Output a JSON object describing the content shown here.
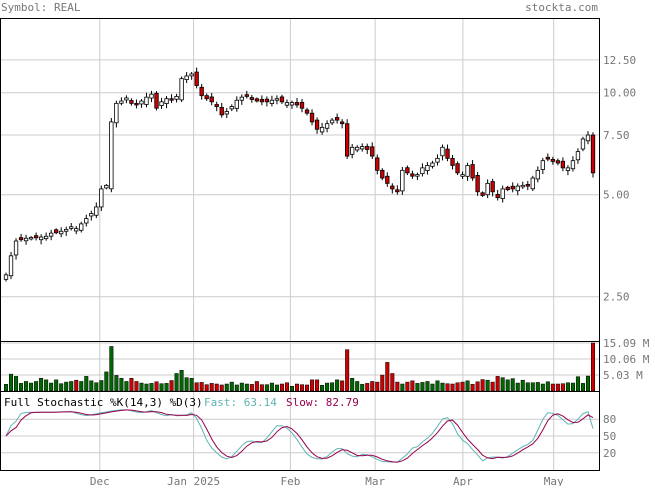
{
  "header": {
    "symbol_text": "Symbol: REAL",
    "brand": "stockta.com"
  },
  "colors": {
    "text_gray": "#777777",
    "up_body": "#ffffff",
    "down_body": "#cc0000",
    "volume_up": "#006600",
    "volume_down": "#cc0000",
    "fast_line": "#5fb3b3",
    "slow_line": "#99004d",
    "grid": "#cccccc"
  },
  "chart_data": [
    {
      "type": "candlestick",
      "title": "",
      "scale": "log",
      "ylim": [
        1.85,
        16.5
      ],
      "y_ticks": [
        "12.50",
        "10.00",
        "7.50",
        "5.00",
        "2.50"
      ],
      "x_tick_labels": [
        "Dec",
        "Jan 2025",
        "Feb",
        "Mar",
        "Apr",
        "May"
      ],
      "x_tick_dates": [
        "2024-12-02",
        "2025-01-02",
        "2025-02-03",
        "2025-03-03",
        "2025-04-01",
        "2025-05-01"
      ],
      "date_range": [
        "2024-11-01",
        "2025-05-14"
      ],
      "closes": [
        2.9,
        3.3,
        3.65,
        3.7,
        3.72,
        3.72,
        3.75,
        3.75,
        3.75,
        3.85,
        3.88,
        3.9,
        3.95,
        4.0,
        3.95,
        4.1,
        4.25,
        4.4,
        4.6,
        5.2,
        5.3,
        8.2,
        9.3,
        9.4,
        9.6,
        9.3,
        9.2,
        9.4,
        9.7,
        9.9,
        9.0,
        9.4,
        9.6,
        9.5,
        9.7,
        11.0,
        11.2,
        11.3,
        10.5,
        9.8,
        9.6,
        9.4,
        9.1,
        8.6,
        8.8,
        9.1,
        9.5,
        9.7,
        9.8,
        9.6,
        9.5,
        9.4,
        9.4,
        9.5,
        9.6,
        9.4,
        9.3,
        9.3,
        9.2,
        9.0,
        8.7,
        8.2,
        7.8,
        7.9,
        8.1,
        8.3,
        8.3,
        8.1,
        6.5,
        6.9,
        6.9,
        6.9,
        6.8,
        6.5,
        5.9,
        5.6,
        5.4,
        5.2,
        5.1,
        5.9,
        5.8,
        5.7,
        5.7,
        6.0,
        6.1,
        6.2,
        6.4,
        6.9,
        6.4,
        6.1,
        5.8,
        5.7,
        6.1,
        5.6,
        5.1,
        5.0,
        5.4,
        5.1,
        4.9,
        5.2,
        5.2,
        5.2,
        5.3,
        5.3,
        5.3,
        5.6,
        5.9,
        6.3,
        6.4,
        6.3,
        6.2,
        6.0,
        6.0,
        6.3,
        6.7,
        7.3,
        7.5,
        5.8
      ],
      "volume_scale_labels": [
        "15.09 M",
        "10.06 M",
        "5.03 M"
      ],
      "volume_scale_values": [
        15.09,
        10.06,
        5.03
      ],
      "volumes": [
        2.1,
        5.3,
        4.6,
        2.4,
        3.0,
        2.5,
        3.0,
        4.0,
        3.5,
        2.5,
        3.5,
        2.3,
        2.8,
        3.0,
        3.4,
        3.0,
        4.6,
        3.2,
        2.6,
        3.3,
        6.0,
        14.0,
        4.9,
        4.0,
        3.0,
        4.0,
        3.0,
        2.5,
        2.2,
        2.4,
        2.9,
        2.3,
        2.4,
        3.3,
        5.5,
        6.5,
        4.2,
        4.0,
        2.6,
        2.7,
        2.0,
        2.4,
        2.2,
        1.9,
        2.2,
        2.8,
        1.9,
        2.5,
        2.2,
        2.1,
        3.0,
        2.0,
        2.0,
        2.5,
        1.9,
        2.2,
        2.6,
        1.5,
        2.2,
        2.0,
        1.9,
        3.5,
        3.5,
        1.8,
        2.5,
        2.6,
        3.5,
        3.2,
        13.0,
        4.0,
        3.0,
        2.1,
        2.4,
        3.0,
        2.8,
        5.0,
        9.0,
        5.5,
        2.8,
        2.2,
        2.8,
        3.2,
        2.4,
        2.7,
        3.0,
        2.2,
        3.2,
        2.5,
        2.3,
        2.2,
        2.6,
        2.8,
        3.2,
        2.1,
        2.9,
        3.6,
        3.4,
        2.8,
        4.6,
        4.2,
        3.5,
        3.9,
        2.5,
        3.4,
        2.6,
        2.6,
        2.7,
        2.2,
        2.9,
        2.2,
        2.2,
        2.3,
        2.6,
        2.5,
        4.5,
        2.4,
        4.7,
        15.09
      ],
      "stochastic": {
        "label": "Full Stochastic %K(14,3) %D(3)",
        "fast_label": "Fast: 63.14",
        "slow_label": "Slow: 82.79",
        "fast_value": 63.14,
        "slow_value": 82.79,
        "levels": [
          "80",
          "50",
          "20"
        ],
        "ylim": [
          0,
          100
        ]
      }
    }
  ]
}
